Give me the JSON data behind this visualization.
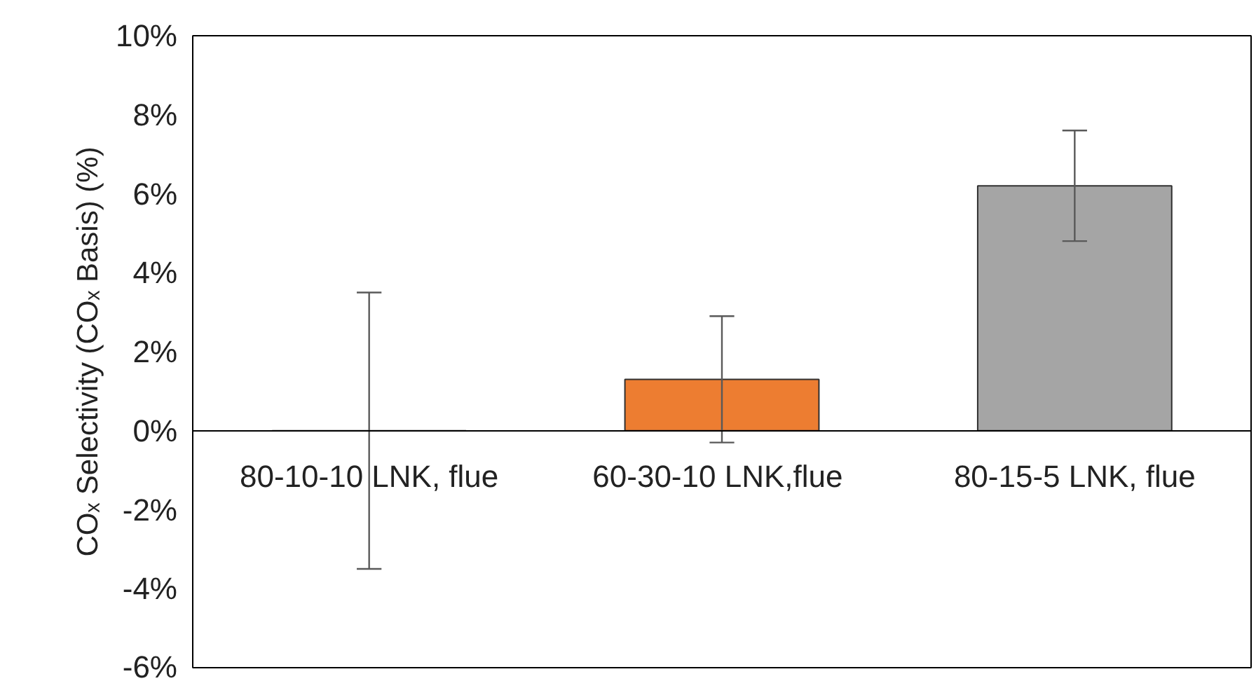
{
  "chart_data": {
    "type": "bar",
    "ylabel": "COₓ Selectivity (COₓ Basis) (%)",
    "categories": [
      "80-10-10 LNK, flue",
      "60-30-10  LNK,flue",
      "80-15-5 LNK, flue"
    ],
    "values": [
      0,
      1.3,
      6.2
    ],
    "colors": [
      "#303030",
      "#ed7d31",
      "#a5a5a5"
    ],
    "errors": [
      3.5,
      1.6,
      1.4
    ],
    "ylim": [
      -6,
      10
    ],
    "yticks": [
      {
        "value": -6,
        "label": "-6%"
      },
      {
        "value": -4,
        "label": "-4%"
      },
      {
        "value": -2,
        "label": "-2%"
      },
      {
        "value": 0,
        "label": "0%"
      },
      {
        "value": 2,
        "label": "2%"
      },
      {
        "value": 4,
        "label": "4%"
      },
      {
        "value": 6,
        "label": "6%"
      },
      {
        "value": 8,
        "label": "8%"
      },
      {
        "value": 10,
        "label": "10%"
      }
    ],
    "grid": false
  }
}
